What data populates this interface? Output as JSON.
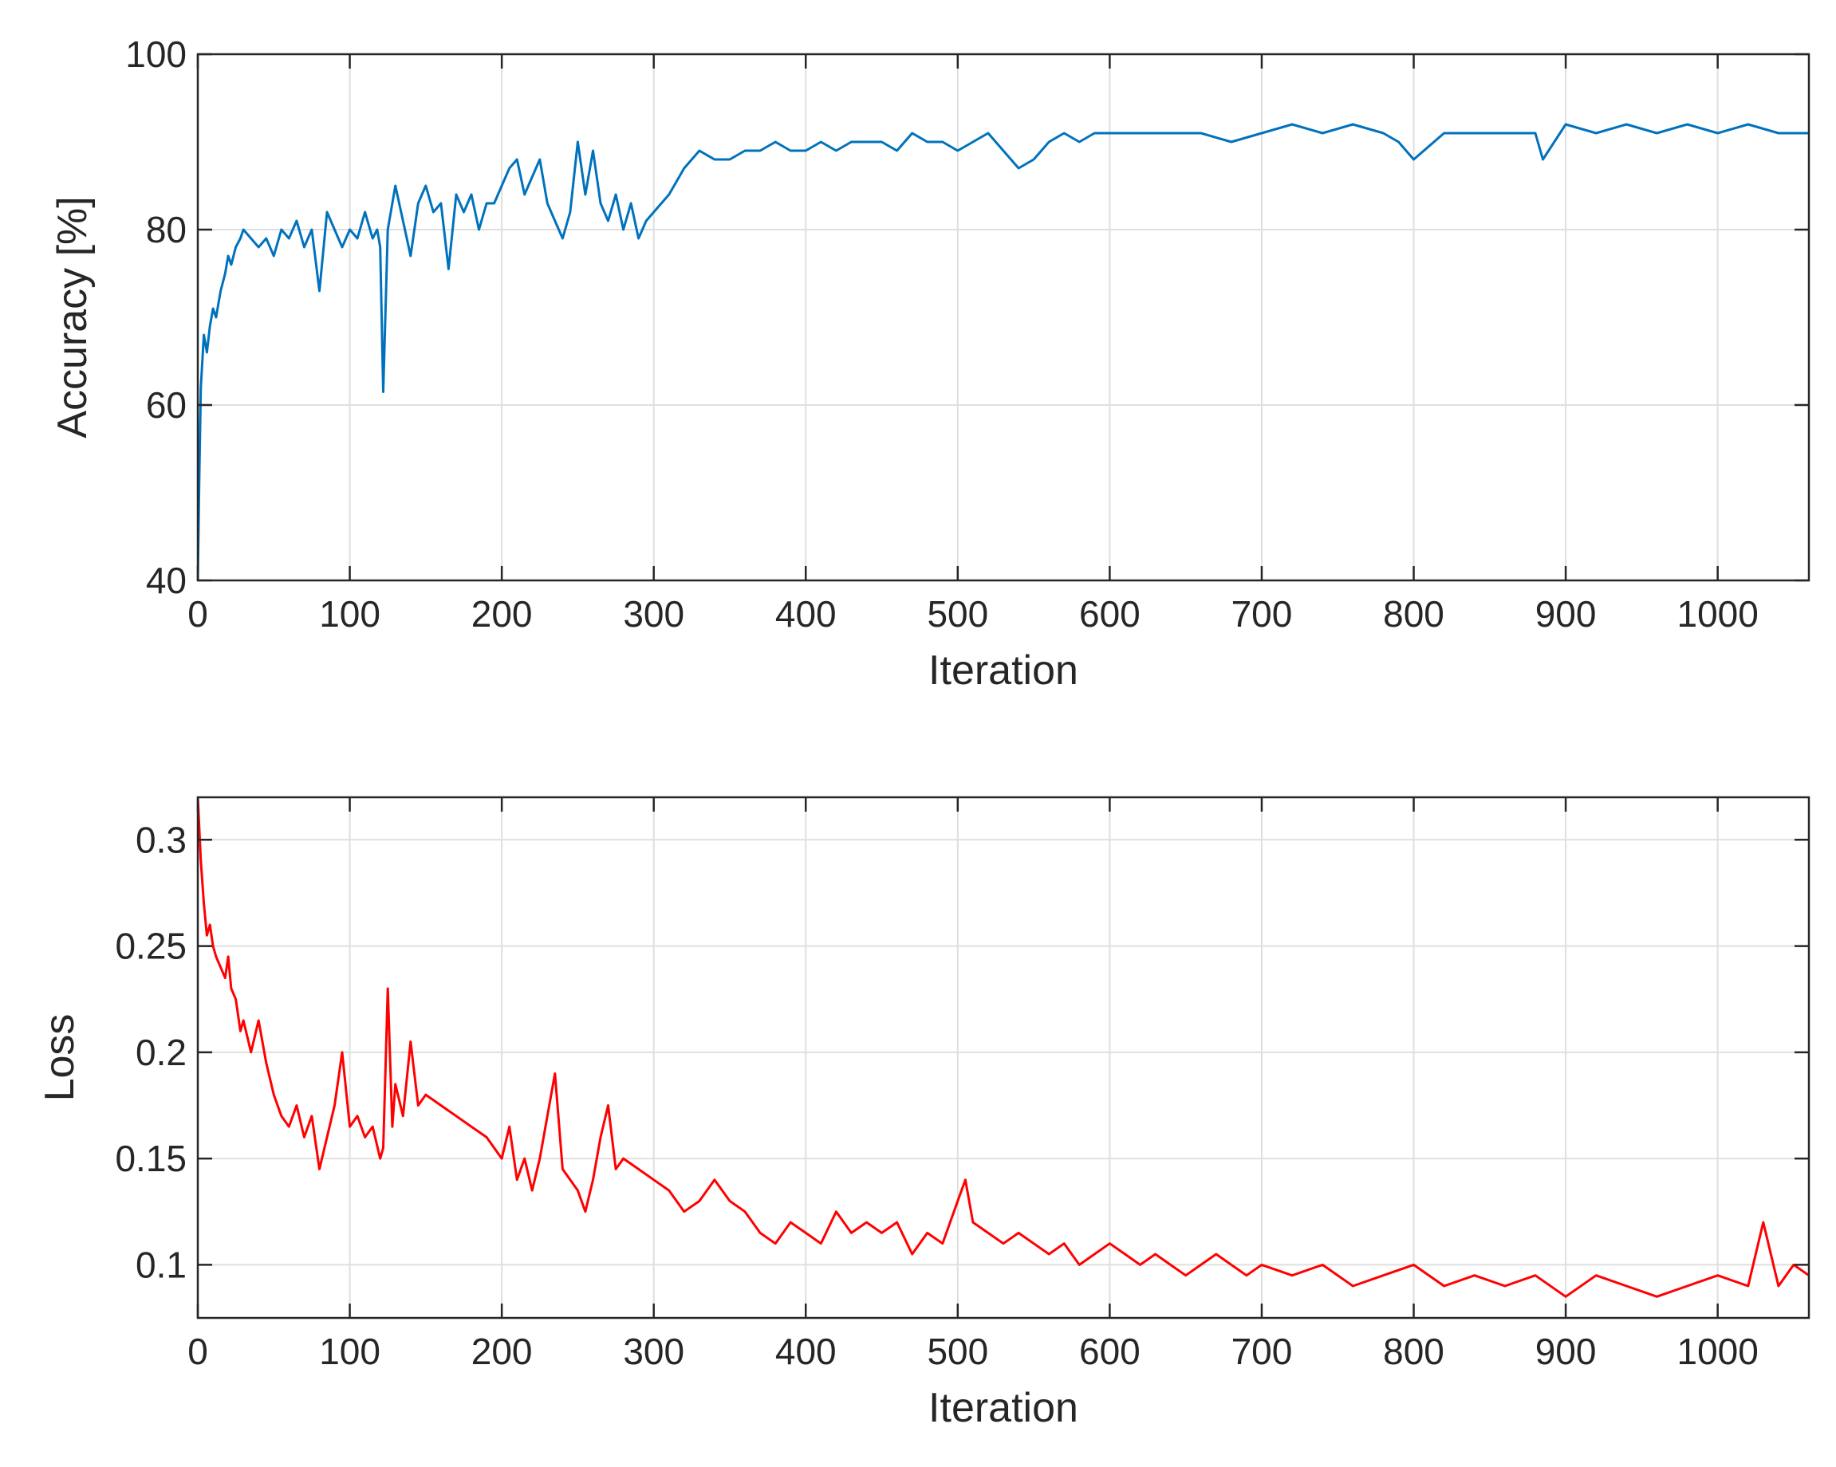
{
  "colors": {
    "accuracy_line": "#0072BD",
    "loss_line": "#FF0000",
    "axes": "#262626",
    "grid": "#DFDFDF"
  },
  "chart_data": [
    {
      "type": "line",
      "title": "",
      "xlabel": "Iteration",
      "ylabel": "Accuracy [%]",
      "xlim": [
        0,
        1060
      ],
      "ylim": [
        40,
        100
      ],
      "xticks": [
        "0",
        "100",
        "200",
        "300",
        "400",
        "500",
        "600",
        "700",
        "800",
        "900",
        "1000"
      ],
      "yticks": [
        "40",
        "60",
        "80",
        "100"
      ],
      "grid": true,
      "legend": "none",
      "series": [
        {
          "color": "#0072BD",
          "x": [
            0,
            1,
            2,
            4,
            6,
            8,
            10,
            12,
            15,
            18,
            20,
            22,
            25,
            28,
            30,
            35,
            40,
            45,
            50,
            55,
            60,
            65,
            70,
            75,
            80,
            85,
            90,
            95,
            100,
            105,
            110,
            115,
            118,
            120,
            122,
            125,
            128,
            130,
            135,
            140,
            145,
            150,
            155,
            160,
            165,
            170,
            175,
            180,
            185,
            190,
            195,
            200,
            205,
            210,
            215,
            220,
            225,
            230,
            235,
            240,
            245,
            250,
            255,
            260,
            265,
            270,
            275,
            280,
            285,
            290,
            295,
            300,
            310,
            320,
            330,
            340,
            350,
            360,
            370,
            380,
            390,
            400,
            410,
            420,
            430,
            440,
            450,
            460,
            470,
            480,
            490,
            500,
            510,
            520,
            530,
            540,
            550,
            560,
            570,
            580,
            590,
            600,
            620,
            640,
            660,
            680,
            700,
            720,
            740,
            760,
            780,
            790,
            800,
            820,
            840,
            860,
            880,
            885,
            900,
            920,
            940,
            960,
            980,
            1000,
            1020,
            1040,
            1060
          ],
          "y": [
            40,
            52,
            62,
            68,
            66,
            69,
            71,
            70,
            73,
            75,
            77,
            76,
            78,
            79,
            80,
            79,
            78,
            79,
            77,
            80,
            79,
            81,
            78,
            80,
            73,
            82,
            80,
            78,
            80,
            79,
            82,
            79,
            80,
            78,
            61.5,
            80,
            83,
            85,
            81,
            77,
            83,
            85,
            82,
            83,
            75.5,
            84,
            82,
            84,
            80,
            83,
            83,
            85,
            87,
            88,
            84,
            86,
            88,
            83,
            81,
            79,
            82,
            90,
            84,
            89,
            83,
            81,
            84,
            80,
            83,
            79,
            81,
            82,
            84,
            87,
            89,
            88,
            88,
            89,
            89,
            90,
            89,
            89,
            90,
            89,
            90,
            90,
            90,
            89,
            91,
            90,
            90,
            89,
            90,
            91,
            89,
            87,
            88,
            90,
            91,
            90,
            91,
            91,
            91,
            91,
            91,
            90,
            91,
            92,
            91,
            92,
            91,
            90,
            88,
            91,
            91,
            91,
            91,
            88,
            92,
            91,
            92,
            91,
            92,
            91,
            92,
            91,
            91
          ]
        }
      ]
    },
    {
      "type": "line",
      "title": "",
      "xlabel": "Iteration",
      "ylabel": "Loss",
      "xlim": [
        0,
        1060
      ],
      "ylim": [
        0.075,
        0.32
      ],
      "xticks": [
        "0",
        "100",
        "200",
        "300",
        "400",
        "500",
        "600",
        "700",
        "800",
        "900",
        "1000"
      ],
      "yticks": [
        "0.1",
        "0.15",
        "0.2",
        "0.25",
        "0.3"
      ],
      "grid": true,
      "legend": "none",
      "series": [
        {
          "color": "#FF0000",
          "x": [
            0,
            2,
            4,
            6,
            8,
            10,
            12,
            15,
            18,
            20,
            22,
            25,
            28,
            30,
            35,
            40,
            45,
            50,
            55,
            60,
            65,
            70,
            75,
            80,
            85,
            90,
            95,
            100,
            105,
            110,
            115,
            120,
            122,
            125,
            128,
            130,
            135,
            140,
            145,
            150,
            160,
            170,
            180,
            190,
            200,
            205,
            210,
            215,
            220,
            225,
            230,
            235,
            240,
            245,
            250,
            255,
            260,
            265,
            270,
            275,
            280,
            290,
            300,
            310,
            320,
            330,
            340,
            350,
            360,
            370,
            380,
            390,
            400,
            410,
            420,
            430,
            440,
            450,
            460,
            470,
            480,
            490,
            500,
            505,
            510,
            520,
            530,
            540,
            550,
            560,
            570,
            580,
            590,
            600,
            610,
            620,
            630,
            640,
            650,
            660,
            670,
            680,
            690,
            700,
            720,
            740,
            760,
            780,
            800,
            820,
            840,
            860,
            880,
            900,
            920,
            940,
            960,
            980,
            1000,
            1020,
            1030,
            1040,
            1050,
            1060
          ],
          "y": [
            0.32,
            0.29,
            0.27,
            0.255,
            0.26,
            0.25,
            0.245,
            0.24,
            0.235,
            0.245,
            0.23,
            0.225,
            0.21,
            0.215,
            0.2,
            0.215,
            0.195,
            0.18,
            0.17,
            0.165,
            0.175,
            0.16,
            0.17,
            0.145,
            0.16,
            0.175,
            0.2,
            0.165,
            0.17,
            0.16,
            0.165,
            0.15,
            0.155,
            0.23,
            0.165,
            0.185,
            0.17,
            0.205,
            0.175,
            0.18,
            0.175,
            0.17,
            0.165,
            0.16,
            0.15,
            0.165,
            0.14,
            0.15,
            0.135,
            0.15,
            0.17,
            0.19,
            0.145,
            0.14,
            0.135,
            0.125,
            0.14,
            0.16,
            0.175,
            0.145,
            0.15,
            0.145,
            0.14,
            0.135,
            0.125,
            0.13,
            0.14,
            0.13,
            0.125,
            0.115,
            0.11,
            0.12,
            0.115,
            0.11,
            0.125,
            0.115,
            0.12,
            0.115,
            0.12,
            0.105,
            0.115,
            0.11,
            0.13,
            0.14,
            0.12,
            0.115,
            0.11,
            0.115,
            0.11,
            0.105,
            0.11,
            0.1,
            0.105,
            0.11,
            0.105,
            0.1,
            0.105,
            0.1,
            0.095,
            0.1,
            0.105,
            0.1,
            0.095,
            0.1,
            0.095,
            0.1,
            0.09,
            0.095,
            0.1,
            0.09,
            0.095,
            0.09,
            0.095,
            0.085,
            0.095,
            0.09,
            0.085,
            0.09,
            0.095,
            0.09,
            0.12,
            0.09,
            0.1,
            0.095
          ]
        }
      ]
    }
  ]
}
